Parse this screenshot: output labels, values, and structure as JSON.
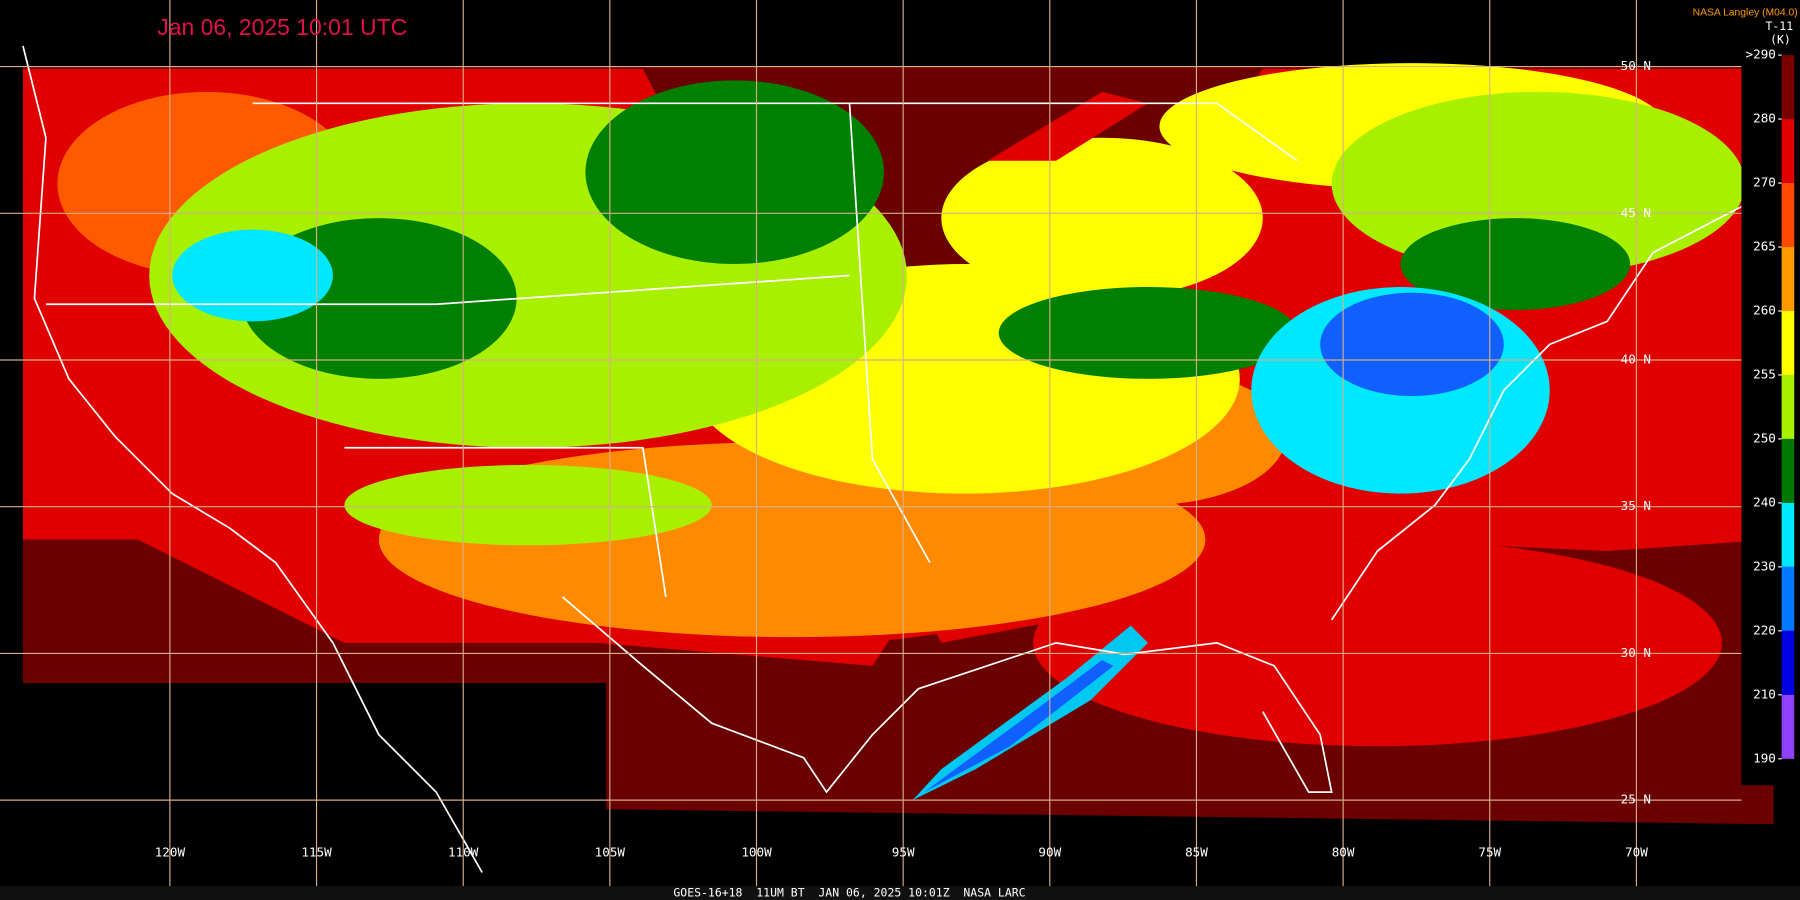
{
  "header": {
    "title": "Jan 06, 2025 10:01 UTC",
    "credit": "NASA Langley (M04.0)"
  },
  "colorbar": {
    "title": "T-11",
    "unit": "(K)",
    "ticks": [
      {
        "value": 290,
        "label": ">290"
      },
      280,
      270,
      265,
      260,
      255,
      250,
      240,
      230,
      220,
      210,
      190
    ],
    "colors": [
      "#7a0000",
      "#e00000",
      "#ff4a00",
      "#ff9a00",
      "#ffff00",
      "#a8f000",
      "#007800",
      "#00e8ff",
      "#0078ff",
      "#0000e0",
      "#9040ff"
    ]
  },
  "map": {
    "lat_lines": [
      {
        "value": 50,
        "label": "50 N"
      },
      {
        "value": 45,
        "label": "45 N"
      },
      {
        "value": 40,
        "label": "40 N"
      },
      {
        "value": 35,
        "label": "35 N"
      },
      {
        "value": 30,
        "label": "30 N"
      },
      {
        "value": 25,
        "label": "25 N"
      }
    ],
    "lon_lines": [
      {
        "value": -120,
        "label": "120W"
      },
      {
        "value": -115,
        "label": "115W"
      },
      {
        "value": -110,
        "label": "110W"
      },
      {
        "value": -105,
        "label": "105W"
      },
      {
        "value": -100,
        "label": "100W"
      },
      {
        "value": -95,
        "label": "95W"
      },
      {
        "value": -90,
        "label": "90W"
      },
      {
        "value": -85,
        "label": "85W"
      },
      {
        "value": -80,
        "label": "80W"
      },
      {
        "value": -75,
        "label": "75W"
      },
      {
        "value": -70,
        "label": "70W"
      }
    ],
    "grid_color": "#d8ae88"
  },
  "footer": {
    "text": "GOES-16+18  11UM BT  JAN 06, 2025 10:01Z  NASA LARC"
  }
}
